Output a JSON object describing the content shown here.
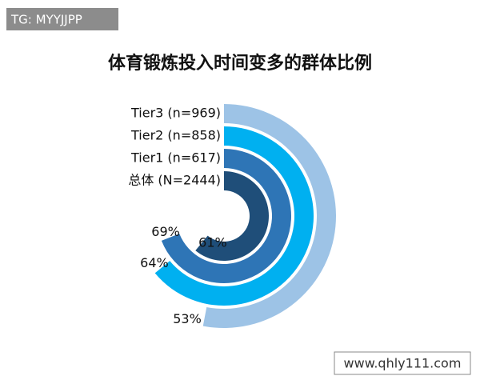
{
  "watermark": "TG: MYYJJPP",
  "site": "www.qhly111.com",
  "chart_data": {
    "type": "radial-bar",
    "title": "体育锻炼投入时间变多的群体比例",
    "categories": [
      "Tier3 (n=969)",
      "Tier2 (n=858)",
      "Tier1 (n=617)",
      "总体 (N=2444)"
    ],
    "values": [
      53,
      64,
      69,
      61
    ],
    "value_labels": [
      "53%",
      "64%",
      "69%",
      "61%"
    ],
    "colors": [
      "#9dc3e6",
      "#00b0f0",
      "#2e75b6",
      "#1f4e79"
    ],
    "xlim": [
      0,
      100
    ]
  }
}
